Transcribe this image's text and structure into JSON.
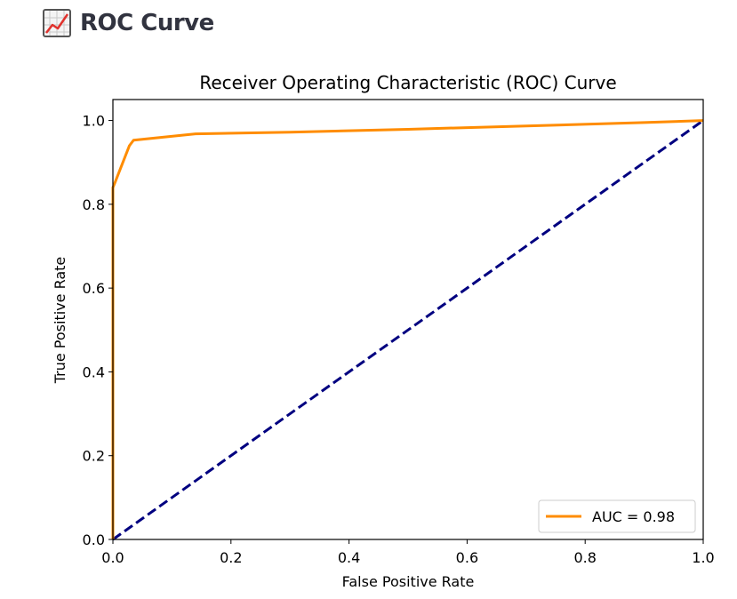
{
  "header": {
    "title": "ROC Curve",
    "icon": "chart-increasing-icon"
  },
  "chart_data": {
    "type": "line",
    "title": "Receiver Operating Characteristic (ROC) Curve",
    "xlabel": "False Positive Rate",
    "ylabel": "True Positive Rate",
    "xlim": [
      0.0,
      1.0
    ],
    "ylim": [
      0.0,
      1.05
    ],
    "xticks": [
      0.0,
      0.2,
      0.4,
      0.6,
      0.8,
      1.0
    ],
    "yticks": [
      0.0,
      0.2,
      0.4,
      0.6,
      0.8,
      1.0
    ],
    "xtick_labels": [
      "0.0",
      "0.2",
      "0.4",
      "0.6",
      "0.8",
      "1.0"
    ],
    "ytick_labels": [
      "0.0",
      "0.2",
      "0.4",
      "0.6",
      "0.8",
      "1.0"
    ],
    "grid": false,
    "legend_position": "lower right",
    "series": [
      {
        "name": "AUC = 0.98",
        "color": "#ff8c00",
        "style": "solid",
        "x": [
          0.0,
          0.0,
          0.003,
          0.028,
          0.035,
          0.14,
          0.3,
          0.5,
          0.7,
          0.9,
          1.0
        ],
        "y": [
          0.0,
          0.84,
          0.85,
          0.94,
          0.953,
          0.968,
          0.972,
          0.979,
          0.987,
          0.995,
          1.0
        ]
      },
      {
        "name": "",
        "color": "#000080",
        "style": "dashed",
        "x": [
          0.0,
          1.0
        ],
        "y": [
          0.0,
          1.0
        ]
      }
    ]
  }
}
